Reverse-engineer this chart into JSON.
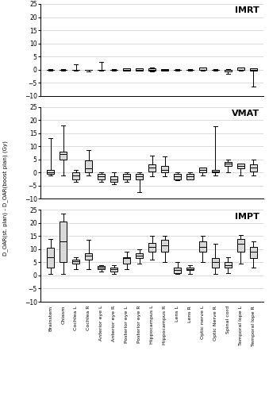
{
  "categories": [
    "Brainstem",
    "Chiasm",
    "Cochlea L",
    "Cochlea R",
    "Anterior eye L",
    "Anterior eye R",
    "Posterior eye L",
    "Posterior eye R",
    "Hippocampus L",
    "Hippocampus R",
    "Lens L",
    "Lens R",
    "Optic nerve L",
    "Optic Nerve R",
    "Spinal cord",
    "Temporal lope L",
    "Temporal lope R"
  ],
  "ylabel": "D_OAR(st. plan) - D_OAR(boost plan) (Gy)",
  "panels": [
    "IMRT",
    "VMAT",
    "IMPT"
  ],
  "ylim": [
    -10,
    25
  ],
  "yticks": [
    -10,
    -5,
    0,
    5,
    10,
    15,
    20,
    25
  ],
  "background_color": "#ffffff",
  "box_facecolor": "#d8d8d8",
  "box_edgecolor": "#000000",
  "IMRT": {
    "q1": [
      0,
      0,
      0,
      0,
      0,
      0,
      -0.4,
      -0.4,
      -0.4,
      -0.3,
      0,
      0,
      0,
      0,
      -0.8,
      0,
      -0.4
    ],
    "q3": [
      0,
      0,
      0,
      0,
      0,
      0,
      0.4,
      0.4,
      0.4,
      0.3,
      0,
      0,
      0.8,
      0,
      0,
      0.8,
      0.4
    ],
    "median": [
      0,
      0,
      0,
      0,
      0,
      0,
      0,
      0,
      0,
      0,
      0,
      0,
      0,
      0,
      0,
      0,
      0
    ],
    "whislo": [
      -0.3,
      -0.3,
      -0.3,
      -0.8,
      -0.5,
      -0.3,
      -0.4,
      -0.4,
      -0.8,
      -0.3,
      -0.3,
      -0.3,
      -0.3,
      -0.3,
      -1.5,
      -0.3,
      -6.5
    ],
    "whishi": [
      0.3,
      0.3,
      2.0,
      0.0,
      3.0,
      0.3,
      0.4,
      0.4,
      0.8,
      0.3,
      0.3,
      0.3,
      0.3,
      0.3,
      0.3,
      0.3,
      0.3
    ]
  },
  "VMAT": {
    "q1": [
      -0.5,
      5.0,
      -2.5,
      0.0,
      -2.5,
      -3.5,
      -2.5,
      -2.5,
      0.5,
      0.0,
      -2.5,
      -2.5,
      0.0,
      0.0,
      2.5,
      1.5,
      0.5
    ],
    "q3": [
      1.0,
      8.0,
      0.0,
      4.5,
      -0.5,
      -1.5,
      -0.5,
      -0.5,
      3.0,
      2.5,
      -0.5,
      -0.5,
      2.0,
      1.0,
      4.0,
      3.5,
      3.0
    ],
    "median": [
      0.0,
      7.0,
      -1.0,
      1.5,
      -1.5,
      -2.5,
      -1.5,
      -1.5,
      2.0,
      1.0,
      -1.5,
      -1.5,
      1.0,
      0.5,
      3.5,
      2.5,
      2.0
    ],
    "whislo": [
      -1.0,
      -1.0,
      -3.5,
      -1.0,
      -3.5,
      -4.5,
      -3.5,
      -7.5,
      -1.5,
      -1.5,
      -3.0,
      -2.5,
      -1.0,
      -1.0,
      0.0,
      -1.0,
      -1.0
    ],
    "whishi": [
      13.0,
      18.0,
      1.0,
      8.5,
      -0.0,
      0.0,
      0.0,
      0.0,
      6.5,
      6.0,
      -0.0,
      -0.0,
      2.0,
      17.5,
      5.0,
      3.0,
      5.0
    ]
  },
  "IMPT": {
    "q1": [
      3.0,
      5.0,
      4.5,
      6.0,
      2.5,
      1.5,
      4.5,
      6.5,
      9.0,
      9.0,
      1.0,
      2.0,
      9.0,
      3.0,
      3.0,
      9.0,
      6.5
    ],
    "q3": [
      10.5,
      20.5,
      6.0,
      8.5,
      3.5,
      3.0,
      7.0,
      8.5,
      12.5,
      13.5,
      3.0,
      3.0,
      13.0,
      6.5,
      5.0,
      14.0,
      11.0
    ],
    "median": [
      7.0,
      13.0,
      5.5,
      7.5,
      3.0,
      2.5,
      6.5,
      7.5,
      11.0,
      11.5,
      2.0,
      2.5,
      11.0,
      5.0,
      4.0,
      12.0,
      9.0
    ],
    "whislo": [
      0.5,
      0.5,
      2.5,
      2.5,
      1.5,
      0.5,
      2.5,
      4.5,
      6.0,
      5.0,
      0.5,
      0.5,
      5.0,
      0.5,
      1.0,
      4.5,
      3.0
    ],
    "whishi": [
      14.0,
      23.5,
      7.0,
      13.5,
      4.0,
      4.0,
      9.0,
      10.0,
      15.0,
      15.0,
      5.0,
      4.0,
      15.0,
      12.0,
      7.0,
      15.5,
      13.0
    ]
  }
}
